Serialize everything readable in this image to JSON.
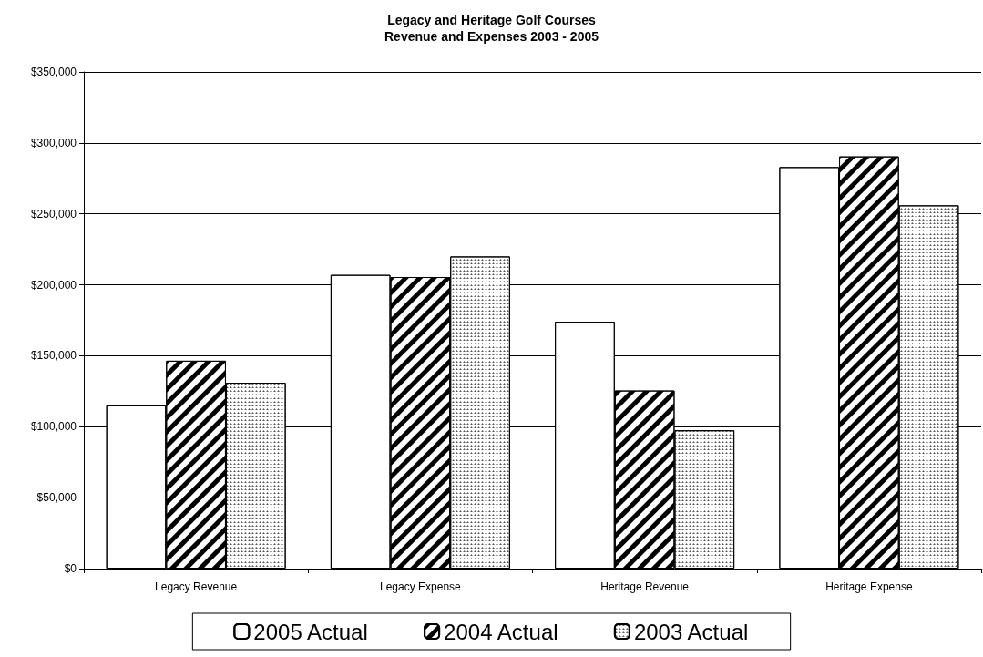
{
  "chart_data": {
    "type": "bar",
    "title": "Legacy and Heritage Golf Courses\nRevenue and Expenses 2003 - 2005",
    "categories": [
      "Legacy Revenue",
      "Legacy Expense",
      "Heritage Revenue",
      "Heritage Expense"
    ],
    "series": [
      {
        "name": "2005 Actual",
        "color": "#ffffff",
        "values": [
          115000,
          207000,
          174000,
          283000
        ]
      },
      {
        "name": "2004 Actual",
        "color": "#ffffff",
        "values": [
          146500,
          205500,
          125500,
          290500
        ]
      },
      {
        "name": "2003 Actual",
        "color": "#ffffff",
        "values": [
          131000,
          220000,
          97500,
          256000
        ]
      }
    ],
    "ylim": [
      0,
      350000
    ],
    "yticks": [
      {
        "value": 0,
        "label": "$0"
      },
      {
        "value": 50000,
        "label": "$50,000"
      },
      {
        "value": 100000,
        "label": "$100,000"
      },
      {
        "value": 150000,
        "label": "$150,000"
      },
      {
        "value": 200000,
        "label": "$200,000"
      },
      {
        "value": 250000,
        "label": "$250,000"
      },
      {
        "value": 300000,
        "label": "$300,000"
      },
      {
        "value": 350000,
        "label": "$350,000"
      }
    ],
    "grid": "y",
    "legend": "bottom"
  }
}
